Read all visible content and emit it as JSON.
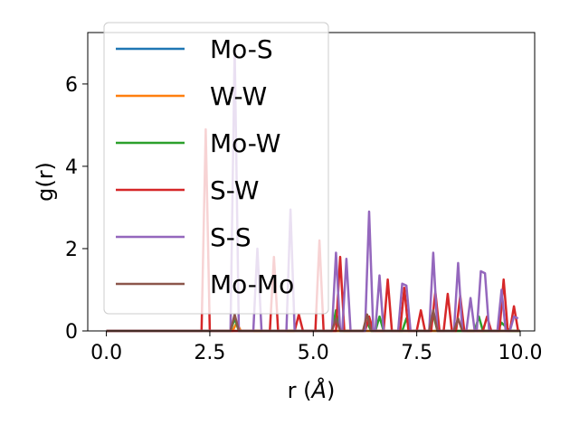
{
  "chart_data": {
    "type": "line",
    "title": "",
    "xlabel": "r (",
    "xlabel_unit": "Å",
    "xlabel_close": ")",
    "ylabel": "g(r)",
    "xlim": [
      -0.45,
      10.35
    ],
    "ylim": [
      0,
      7.25
    ],
    "xticks": [
      0.0,
      2.5,
      5.0,
      7.5,
      10.0
    ],
    "xtick_labels": [
      "0.0",
      "2.5",
      "5.0",
      "7.5",
      "10.0"
    ],
    "yticks": [
      0,
      2,
      4,
      6
    ],
    "ytick_labels": [
      "0",
      "2",
      "4",
      "6"
    ],
    "grid": false,
    "legend_position": "upper-left",
    "series": [
      {
        "name": "Mo-S",
        "color": "#1f77b4",
        "points": [
          [
            0,
            0
          ],
          [
            2.3,
            0
          ],
          [
            2.4,
            0
          ],
          [
            2.5,
            0
          ],
          [
            10,
            0
          ]
        ]
      },
      {
        "name": "W-W",
        "color": "#ff7f0e",
        "points": [
          [
            0,
            0
          ],
          [
            3.05,
            0
          ],
          [
            3.15,
            0.2
          ],
          [
            3.25,
            0
          ],
          [
            10,
            0
          ]
        ]
      },
      {
        "name": "Mo-W",
        "color": "#2ca02c",
        "points": [
          [
            0,
            0
          ],
          [
            3.0,
            0
          ],
          [
            3.1,
            0.3
          ],
          [
            3.2,
            0
          ],
          [
            5.45,
            0
          ],
          [
            5.55,
            0.5
          ],
          [
            5.65,
            0
          ],
          [
            6.2,
            0
          ],
          [
            6.3,
            0.2
          ],
          [
            6.4,
            0
          ],
          [
            6.5,
            0
          ],
          [
            6.6,
            0.35
          ],
          [
            6.7,
            0
          ],
          [
            7.15,
            0
          ],
          [
            7.25,
            0.3
          ],
          [
            7.35,
            0
          ],
          [
            7.8,
            0
          ],
          [
            7.9,
            0.4
          ],
          [
            8.0,
            0
          ],
          [
            8.9,
            0
          ],
          [
            9.0,
            0.35
          ],
          [
            9.1,
            0
          ],
          [
            9.45,
            0
          ],
          [
            9.55,
            0.2
          ],
          [
            9.65,
            0.1
          ],
          [
            9.75,
            0
          ],
          [
            10,
            0
          ]
        ]
      },
      {
        "name": "S-W",
        "color": "#d62728",
        "points": [
          [
            0,
            0
          ],
          [
            2.3,
            0
          ],
          [
            2.4,
            4.9
          ],
          [
            2.5,
            0
          ],
          [
            3.95,
            0
          ],
          [
            4.05,
            1.8
          ],
          [
            4.15,
            0
          ],
          [
            4.55,
            0
          ],
          [
            4.65,
            0.4
          ],
          [
            4.75,
            0
          ],
          [
            5.05,
            0
          ],
          [
            5.15,
            2.2
          ],
          [
            5.25,
            0
          ],
          [
            5.55,
            0
          ],
          [
            5.65,
            1.8
          ],
          [
            5.75,
            0
          ],
          [
            6.25,
            0
          ],
          [
            6.35,
            0.35
          ],
          [
            6.45,
            0
          ],
          [
            6.7,
            0
          ],
          [
            6.8,
            1.25
          ],
          [
            6.9,
            0
          ],
          [
            7.1,
            0
          ],
          [
            7.2,
            1.05
          ],
          [
            7.3,
            0
          ],
          [
            7.5,
            0
          ],
          [
            7.6,
            0.5
          ],
          [
            7.7,
            0
          ],
          [
            7.85,
            0
          ],
          [
            7.95,
            0.95
          ],
          [
            8.05,
            0
          ],
          [
            8.15,
            0
          ],
          [
            8.25,
            0.9
          ],
          [
            8.35,
            0
          ],
          [
            8.45,
            0
          ],
          [
            8.55,
            0.85
          ],
          [
            8.65,
            0
          ],
          [
            9.1,
            0
          ],
          [
            9.2,
            0.35
          ],
          [
            9.3,
            0
          ],
          [
            9.5,
            0
          ],
          [
            9.6,
            1.25
          ],
          [
            9.7,
            0
          ],
          [
            9.75,
            0
          ],
          [
            9.85,
            0.6
          ],
          [
            9.95,
            0
          ]
        ]
      },
      {
        "name": "S-S",
        "color": "#9467bd",
        "points": [
          [
            0,
            0
          ],
          [
            3.0,
            0
          ],
          [
            3.1,
            6.9
          ],
          [
            3.2,
            0
          ],
          [
            3.55,
            0
          ],
          [
            3.65,
            2.0
          ],
          [
            3.75,
            0
          ],
          [
            4.35,
            0
          ],
          [
            4.45,
            2.95
          ],
          [
            4.55,
            0
          ],
          [
            5.45,
            0
          ],
          [
            5.55,
            1.9
          ],
          [
            5.65,
            0
          ],
          [
            5.7,
            0
          ],
          [
            5.8,
            1.75
          ],
          [
            5.9,
            0
          ],
          [
            6.25,
            0
          ],
          [
            6.35,
            2.9
          ],
          [
            6.45,
            0
          ],
          [
            6.5,
            0
          ],
          [
            6.6,
            1.35
          ],
          [
            6.7,
            0
          ],
          [
            7.05,
            0
          ],
          [
            7.15,
            1.15
          ],
          [
            7.25,
            1.1
          ],
          [
            7.35,
            0
          ],
          [
            7.8,
            0
          ],
          [
            7.9,
            1.9
          ],
          [
            8.0,
            0
          ],
          [
            8.4,
            0
          ],
          [
            8.5,
            1.65
          ],
          [
            8.6,
            0
          ],
          [
            8.7,
            0
          ],
          [
            8.8,
            0.8
          ],
          [
            8.9,
            0
          ],
          [
            8.95,
            0
          ],
          [
            9.05,
            1.45
          ],
          [
            9.15,
            1.4
          ],
          [
            9.25,
            0
          ],
          [
            9.45,
            0
          ],
          [
            9.55,
            1.0
          ],
          [
            9.65,
            0
          ],
          [
            9.75,
            0
          ],
          [
            9.85,
            0.35
          ],
          [
            9.95,
            0.3
          ]
        ]
      },
      {
        "name": "Mo-Mo",
        "color": "#8c564b",
        "points": [
          [
            0,
            0
          ],
          [
            3.0,
            0
          ],
          [
            3.1,
            0.4
          ],
          [
            3.2,
            0
          ],
          [
            5.45,
            0
          ],
          [
            5.55,
            0.3
          ],
          [
            5.65,
            0
          ],
          [
            6.2,
            0
          ],
          [
            6.3,
            0.4
          ],
          [
            6.4,
            0
          ],
          [
            7.8,
            0
          ],
          [
            7.9,
            0.5
          ],
          [
            8.0,
            0
          ],
          [
            8.4,
            0
          ],
          [
            8.5,
            0.3
          ],
          [
            8.6,
            0
          ],
          [
            10,
            0
          ]
        ]
      }
    ]
  }
}
